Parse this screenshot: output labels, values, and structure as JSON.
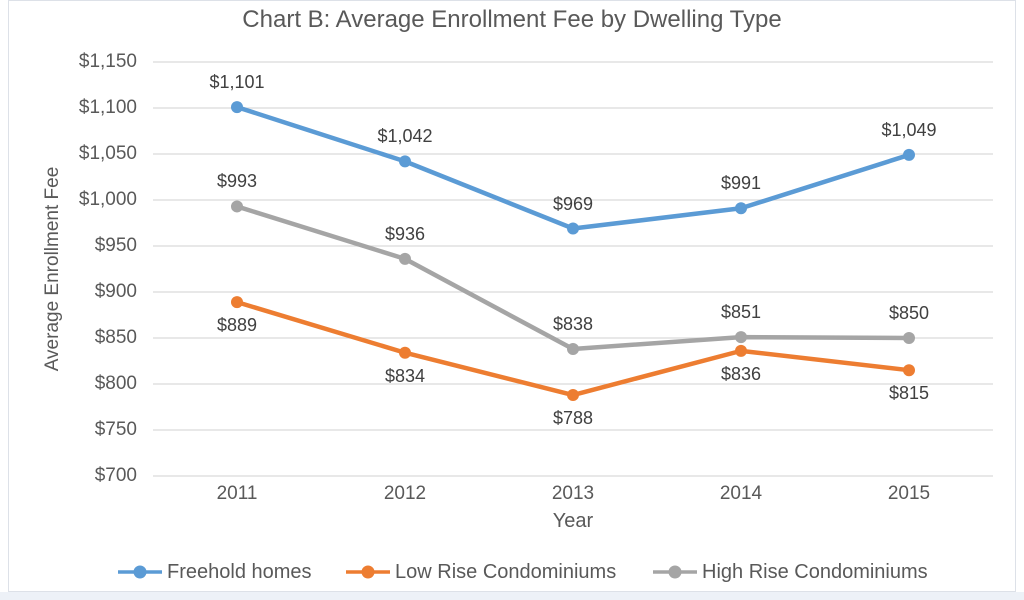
{
  "title": "Chart B: Average Enrollment Fee by Dwelling Type",
  "styles": {
    "gridline_color": "#d9d9d9",
    "axis_text_color": "#595959",
    "data_label_color": "#404040",
    "frame_border_color": "#dde1e8",
    "bottom_strip_color": "#edf1f7",
    "freehold_color": "#5B9BD5",
    "low_rise_color": "#ED7D31",
    "high_rise_color": "#A5A5A5"
  },
  "chart_data": {
    "type": "line",
    "title": "Chart B: Average Enrollment Fee by Dwelling Type",
    "xlabel": "Year",
    "ylabel": "Average Enrollment Fee",
    "categories": [
      "2011",
      "2012",
      "2013",
      "2014",
      "2015"
    ],
    "series": [
      {
        "name": "Freehold homes",
        "color": "#5B9BD5",
        "values": [
          1101,
          1042,
          969,
          991,
          1049
        ],
        "labels": [
          "$1,101",
          "$1,042",
          "$969",
          "$991",
          "$1,049"
        ],
        "label_position": "above"
      },
      {
        "name": "Low Rise Condominiums",
        "color": "#ED7D31",
        "values": [
          889,
          834,
          788,
          836,
          815
        ],
        "labels": [
          "$889",
          "$834",
          "$788",
          "$836",
          "$815"
        ],
        "label_position": "below"
      },
      {
        "name": "High Rise Condominiums",
        "color": "#A5A5A5",
        "values": [
          993,
          936,
          838,
          851,
          850
        ],
        "labels": [
          "$993",
          "$936",
          "$838",
          "$851",
          "$850"
        ],
        "label_position": "above"
      }
    ],
    "ylim": [
      700,
      1150
    ],
    "ytick_step": 50,
    "ytick_labels": [
      "$700",
      "$750",
      "$800",
      "$850",
      "$900",
      "$950",
      "$1,000",
      "$1,050",
      "$1,100",
      "$1,150"
    ],
    "grid": true,
    "legend_position": "bottom"
  }
}
